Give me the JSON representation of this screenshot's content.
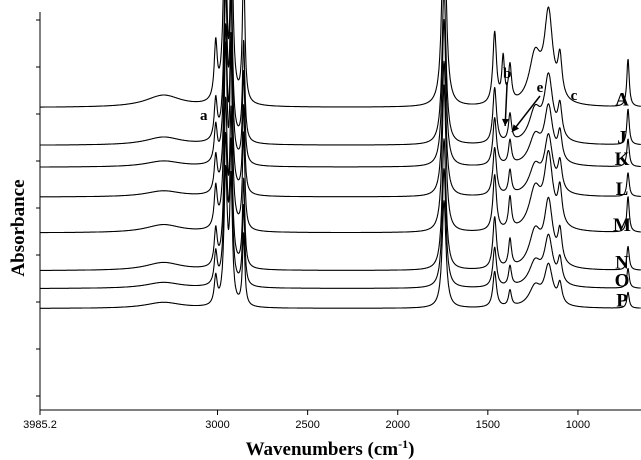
{
  "chart_data": {
    "type": "line",
    "title": "",
    "xlabel": "Wavenumbers (cm",
    "xlabel_superscript": "-1",
    "xlabel_suffix": ")",
    "ylabel": "Absorbance",
    "xlim": [
      3985.2,
      650
    ],
    "x_reversed": true,
    "x_ticks": [
      {
        "value": 3985.2,
        "label": "3985.2"
      },
      {
        "value": 3000,
        "label": "3000"
      },
      {
        "value": 2500,
        "label": "2500"
      },
      {
        "value": 2000,
        "label": "2000"
      },
      {
        "value": 1500,
        "label": "1500"
      },
      {
        "value": 1000,
        "label": "1000"
      }
    ],
    "y_tick_labels_shown": false,
    "grid": false,
    "series": [
      {
        "name": "A",
        "baseline": 0.76,
        "peaks": [
          [
            3010,
            0.14,
            10
          ],
          [
            2955,
            0.62,
            11
          ],
          [
            2925,
            0.58,
            9
          ],
          [
            2855,
            0.35,
            8
          ],
          [
            3300,
            0.03,
            120
          ],
          [
            1743,
            0.55,
            13
          ],
          [
            1462,
            0.18,
            12
          ],
          [
            1415,
            0.11,
            9
          ],
          [
            1377,
            0.09,
            10
          ],
          [
            1238,
            0.12,
            40
          ],
          [
            1163,
            0.22,
            28
          ],
          [
            1100,
            0.1,
            14
          ],
          [
            722,
            0.12,
            8
          ]
        ]
      },
      {
        "name": "J",
        "baseline": 0.665,
        "peaks": [
          [
            3010,
            0.1,
            10
          ],
          [
            2955,
            0.45,
            11
          ],
          [
            2925,
            0.4,
            9
          ],
          [
            2855,
            0.25,
            8
          ],
          [
            3300,
            0.02,
            120
          ],
          [
            1743,
            0.4,
            13
          ],
          [
            1462,
            0.14,
            12
          ],
          [
            1377,
            0.07,
            10
          ],
          [
            1238,
            0.08,
            40
          ],
          [
            1163,
            0.16,
            28
          ],
          [
            1100,
            0.08,
            14
          ],
          [
            722,
            0.09,
            8
          ]
        ]
      },
      {
        "name": "K",
        "baseline": 0.61,
        "peaks": [
          [
            3010,
            0.09,
            10
          ],
          [
            2955,
            0.42,
            11
          ],
          [
            2925,
            0.38,
            9
          ],
          [
            2855,
            0.23,
            8
          ],
          [
            3300,
            0.015,
            120
          ],
          [
            1743,
            0.37,
            13
          ],
          [
            1462,
            0.12,
            12
          ],
          [
            1377,
            0.06,
            10
          ],
          [
            1238,
            0.07,
            40
          ],
          [
            1163,
            0.14,
            28
          ],
          [
            1100,
            0.07,
            14
          ],
          [
            722,
            0.07,
            8
          ]
        ]
      },
      {
        "name": "L",
        "baseline": 0.535,
        "peaks": [
          [
            3010,
            0.09,
            10
          ],
          [
            2955,
            0.4,
            11
          ],
          [
            2925,
            0.36,
            9
          ],
          [
            2855,
            0.22,
            8
          ],
          [
            3300,
            0.015,
            120
          ],
          [
            1743,
            0.34,
            13
          ],
          [
            1462,
            0.12,
            12
          ],
          [
            1377,
            0.06,
            10
          ],
          [
            1238,
            0.07,
            40
          ],
          [
            1163,
            0.14,
            28
          ],
          [
            1100,
            0.07,
            14
          ],
          [
            722,
            0.06,
            8
          ]
        ]
      },
      {
        "name": "M",
        "baseline": 0.445,
        "peaks": [
          [
            3010,
            0.1,
            10
          ],
          [
            2955,
            0.44,
            11
          ],
          [
            2925,
            0.4,
            9
          ],
          [
            2855,
            0.24,
            8
          ],
          [
            3300,
            0.02,
            120
          ],
          [
            1743,
            0.37,
            13
          ],
          [
            1462,
            0.14,
            12
          ],
          [
            1377,
            0.08,
            10
          ],
          [
            1238,
            0.1,
            40
          ],
          [
            1163,
            0.18,
            28
          ],
          [
            1100,
            0.09,
            14
          ],
          [
            722,
            0.09,
            8
          ]
        ]
      },
      {
        "name": "N",
        "baseline": 0.35,
        "peaks": [
          [
            3010,
            0.09,
            10
          ],
          [
            2955,
            0.4,
            11
          ],
          [
            2925,
            0.36,
            9
          ],
          [
            2855,
            0.22,
            8
          ],
          [
            3300,
            0.02,
            120
          ],
          [
            1743,
            0.33,
            13
          ],
          [
            1462,
            0.13,
            12
          ],
          [
            1377,
            0.07,
            10
          ],
          [
            1238,
            0.09,
            40
          ],
          [
            1163,
            0.16,
            28
          ],
          [
            1100,
            0.08,
            14
          ],
          [
            722,
            0.06,
            8
          ]
        ]
      },
      {
        "name": "O",
        "baseline": 0.305,
        "peaks": [
          [
            3010,
            0.08,
            10
          ],
          [
            2955,
            0.36,
            11
          ],
          [
            2925,
            0.33,
            9
          ],
          [
            2855,
            0.2,
            8
          ],
          [
            3300,
            0.015,
            120
          ],
          [
            1743,
            0.3,
            13
          ],
          [
            1462,
            0.1,
            12
          ],
          [
            1377,
            0.05,
            10
          ],
          [
            1238,
            0.06,
            40
          ],
          [
            1163,
            0.12,
            28
          ],
          [
            1100,
            0.06,
            14
          ],
          [
            722,
            0.05,
            8
          ]
        ]
      },
      {
        "name": "P",
        "baseline": 0.255,
        "peaks": [
          [
            3010,
            0.07,
            10
          ],
          [
            2955,
            0.33,
            11
          ],
          [
            2925,
            0.3,
            9
          ],
          [
            2855,
            0.18,
            8
          ],
          [
            3300,
            0.015,
            120
          ],
          [
            1743,
            0.27,
            13
          ],
          [
            1462,
            0.09,
            12
          ],
          [
            1377,
            0.04,
            10
          ],
          [
            1238,
            0.05,
            40
          ],
          [
            1163,
            0.1,
            28
          ],
          [
            1100,
            0.05,
            14
          ],
          [
            722,
            0.04,
            8
          ]
        ]
      }
    ],
    "annotations": [
      {
        "label": "a",
        "x": 3010,
        "type": "text"
      },
      {
        "label": "b",
        "x": 1415,
        "type": "arrow"
      },
      {
        "label": "e",
        "x": 1377,
        "type": "arrow"
      },
      {
        "label": "c",
        "x": 1100,
        "type": "text"
      }
    ]
  }
}
